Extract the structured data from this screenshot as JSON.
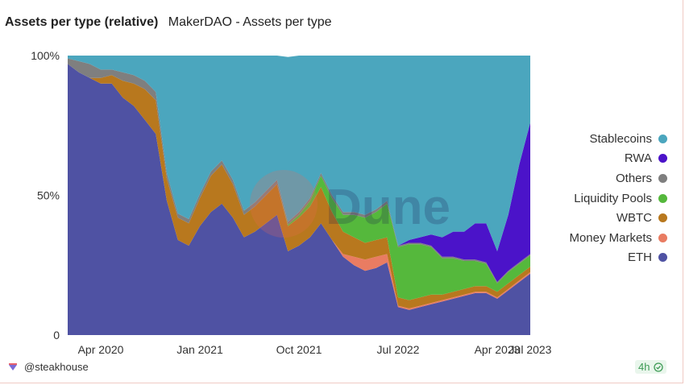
{
  "header": {
    "title": "Assets per type (relative)",
    "subtitle": "MakerDAO - Assets per type"
  },
  "footer": {
    "author": "@steakhouse",
    "refresh_badge": "4h"
  },
  "watermark": "Dune",
  "colors": {
    "ETH": "#4f52a3",
    "Money Markets": "#e97c62",
    "WBTC": "#b8781e",
    "Liquidity Pools": "#55b83c",
    "Others": "#7f7f7f",
    "RWA": "#4b13c9",
    "Stablecoins": "#4ba6be"
  },
  "chart_data": {
    "type": "area",
    "stacked": true,
    "normalized": true,
    "yticks": [
      "0",
      "50%",
      "100%"
    ],
    "ylim": [
      0,
      100
    ],
    "xticks": [
      "Apr 2020",
      "Jan 2021",
      "Oct 2021",
      "Jul 2022",
      "Apr 2023",
      "Jul 2023"
    ],
    "x": [
      "2020-01",
      "2020-02",
      "2020-03",
      "2020-04",
      "2020-05",
      "2020-06",
      "2020-07",
      "2020-08",
      "2020-09",
      "2020-10",
      "2020-11",
      "2020-12",
      "2021-01",
      "2021-02",
      "2021-03",
      "2021-04",
      "2021-05",
      "2021-06",
      "2021-07",
      "2021-08",
      "2021-09",
      "2021-10",
      "2021-11",
      "2021-12",
      "2022-01",
      "2022-02",
      "2022-03",
      "2022-04",
      "2022-05",
      "2022-06",
      "2022-07",
      "2022-08",
      "2022-09",
      "2022-10",
      "2022-11",
      "2022-12",
      "2023-01",
      "2023-02",
      "2023-03",
      "2023-04",
      "2023-05",
      "2023-06",
      "2023-07"
    ],
    "legend": [
      "Stablecoins",
      "RWA",
      "Others",
      "Liquidity Pools",
      "WBTC",
      "Money Markets",
      "ETH"
    ],
    "legend_position": "right",
    "series": [
      {
        "name": "ETH",
        "values": [
          97,
          94,
          92,
          90,
          90,
          85,
          82,
          77,
          72,
          48,
          34,
          32,
          39,
          44,
          47,
          42,
          35,
          37,
          40,
          43,
          30,
          32,
          35,
          40,
          34,
          28,
          25,
          23,
          24,
          26,
          10,
          9,
          10,
          11,
          12,
          13,
          14,
          15,
          15,
          13,
          16,
          19,
          22
        ]
      },
      {
        "name": "Money Markets",
        "values": [
          0,
          0,
          0,
          0,
          0,
          0,
          0,
          0,
          0,
          0,
          0,
          0,
          0,
          0,
          0,
          0,
          0,
          0,
          0,
          0,
          0,
          0,
          0,
          0,
          0,
          1,
          3,
          4,
          4,
          3,
          0.5,
          0.5,
          0.5,
          0.5,
          0.5,
          0.5,
          0.5,
          0.5,
          0.5,
          0.5,
          0.5,
          0.5,
          0.5
        ]
      },
      {
        "name": "WBTC",
        "values": [
          0,
          0,
          0,
          2,
          3,
          6,
          8,
          11,
          12,
          8,
          8,
          8,
          10,
          13,
          14,
          12,
          8,
          9,
          10,
          11,
          9,
          10,
          11,
          13,
          10,
          8,
          7,
          6,
          6,
          6,
          3,
          3,
          3,
          3,
          2,
          2,
          2,
          2,
          2,
          2,
          2,
          2,
          2
        ]
      },
      {
        "name": "Liquidity Pools",
        "values": [
          0,
          0,
          0,
          0,
          0,
          0,
          0,
          0,
          0,
          0,
          0,
          0,
          0,
          0,
          0,
          0,
          0,
          0,
          0,
          0,
          0.5,
          1,
          2,
          4,
          5,
          6,
          8,
          9,
          10,
          12,
          18,
          20,
          19,
          17,
          13,
          12,
          10,
          9,
          8,
          3,
          4,
          4,
          4
        ]
      },
      {
        "name": "Others",
        "values": [
          2,
          4,
          5,
          3,
          2,
          3,
          3,
          3,
          3,
          2,
          1.5,
          1.5,
          1.5,
          1.5,
          1.5,
          1.5,
          1.5,
          1.5,
          1.5,
          1.5,
          1,
          1,
          1,
          1,
          1,
          1,
          1,
          1,
          1,
          1,
          0.5,
          0.5,
          0.5,
          0.5,
          0.5,
          0.5,
          0.5,
          0.5,
          0.5,
          0.5,
          0.5,
          0.5,
          0.5
        ]
      },
      {
        "name": "RWA",
        "values": [
          0,
          0,
          0,
          0,
          0,
          0,
          0,
          0,
          0,
          0,
          0,
          0,
          0,
          0,
          0,
          0,
          0,
          0,
          0,
          0,
          0,
          0,
          0,
          0,
          0,
          0,
          0,
          0,
          0,
          0,
          0,
          1,
          2,
          4,
          7,
          9,
          10,
          13,
          14,
          11,
          20,
          35,
          47
        ]
      },
      {
        "name": "Stablecoins",
        "values": [
          1,
          2,
          3,
          5,
          5,
          6,
          7,
          9,
          13,
          42,
          56.5,
          58.5,
          49.5,
          41.5,
          37.5,
          44.5,
          55.5,
          52.5,
          48.5,
          44.5,
          59,
          56,
          51,
          42,
          50,
          56,
          56,
          57,
          55,
          52,
          68,
          66,
          65,
          64,
          65,
          63,
          63,
          60,
          60,
          70,
          57,
          39,
          24
        ]
      }
    ]
  }
}
